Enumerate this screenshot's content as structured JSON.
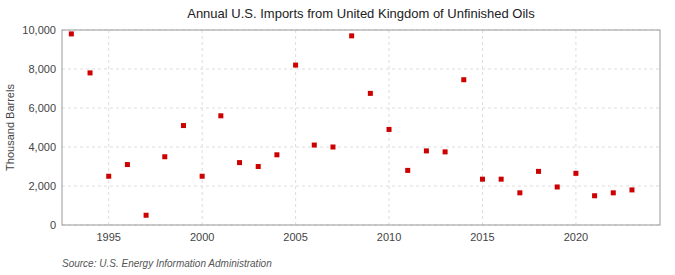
{
  "chart_data": {
    "type": "scatter",
    "title": "Annual U.S. Imports from United Kingdom of Unfinished Oils",
    "y_label": "Thousand Barrels",
    "annotations": [
      "Source: U.S. Energy Information Administration"
    ],
    "x": [
      1993,
      1994,
      1995,
      1996,
      1997,
      1998,
      1999,
      2000,
      2001,
      2002,
      2003,
      2004,
      2005,
      2006,
      2007,
      2008,
      2009,
      2010,
      2011,
      2012,
      2013,
      2014,
      2015,
      2016,
      2017,
      2018,
      2019,
      2020,
      2021,
      2022,
      2023
    ],
    "values": [
      9800,
      7800,
      2500,
      3100,
      500,
      3500,
      5100,
      2500,
      5600,
      3200,
      3000,
      3600,
      8200,
      4100,
      4000,
      9700,
      6750,
      4900,
      2800,
      3800,
      3750,
      7450,
      2350,
      2350,
      1650,
      2750,
      1950,
      2650,
      1500,
      1650,
      1800
    ],
    "color": "#cc0000",
    "marker": "square",
    "xlim": [
      1992.5,
      2024.5
    ],
    "xticks": [
      1995,
      2000,
      2005,
      2010,
      2015,
      2020
    ],
    "ylim": [
      0,
      10000
    ],
    "yticks": [
      0,
      {
        "value": 2000,
        "label": "2,000"
      },
      {
        "value": 4000,
        "label": "4,000"
      },
      {
        "value": 6000,
        "label": "6,000"
      },
      {
        "value": 8000,
        "label": "8,000"
      },
      {
        "value": 10000,
        "label": "10,000"
      }
    ],
    "grid": true
  }
}
